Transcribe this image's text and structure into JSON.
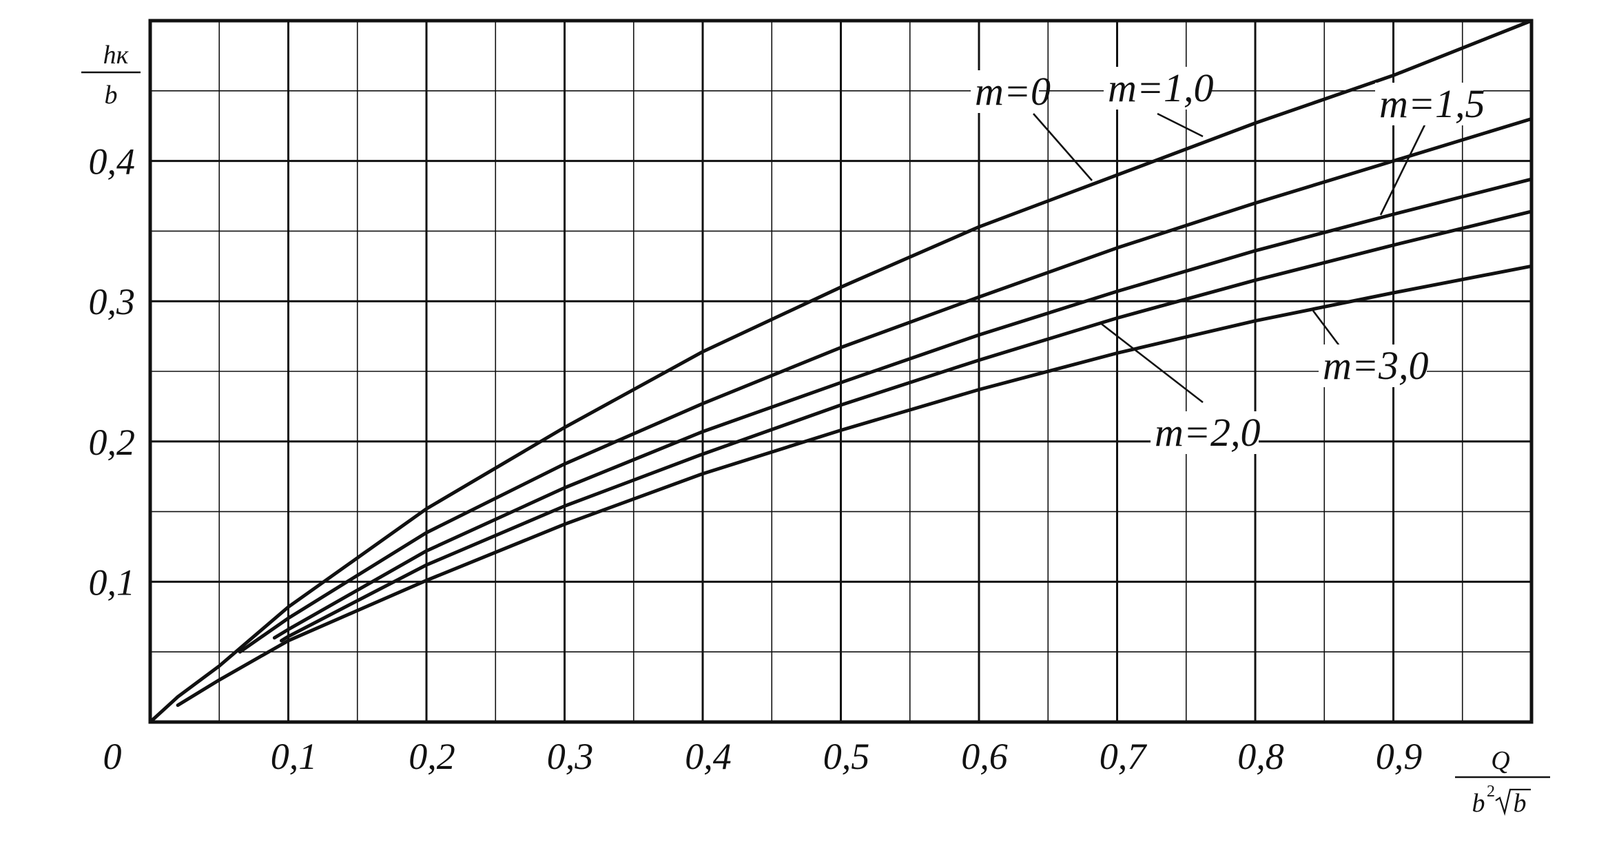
{
  "chart_data": {
    "type": "line",
    "title": "",
    "xlabel": "Q / b²√b",
    "ylabel": "hк / b",
    "xlim": [
      0,
      1.0
    ],
    "ylim": [
      0,
      0.5
    ],
    "grid": true,
    "legend": "inline labels with leader lines",
    "x_tick_labels": [
      "0,1",
      "0,2",
      "0,3",
      "0,4",
      "0,5",
      "0,6",
      "0,7",
      "0,8",
      "0,9"
    ],
    "y_tick_labels": [
      "0,1",
      "0,2",
      "0,3",
      "0,4"
    ],
    "origin_label": "0",
    "axis_labels": {
      "y_numerator": "hк",
      "y_denominator": "b",
      "x_numerator": "Q",
      "x_denominator_base": "b",
      "x_denominator_exp": "2",
      "x_denominator_root": "b"
    },
    "series": [
      {
        "name": "m=0",
        "x": [
          0,
          0.02,
          0.05,
          0.1,
          0.2,
          0.3,
          0.4,
          0.5,
          0.6,
          0.7,
          0.8,
          0.9,
          1.0
        ],
        "y": [
          0,
          0.018,
          0.04,
          0.082,
          0.152,
          0.21,
          0.264,
          0.31,
          0.353,
          0.39,
          0.427,
          0.461,
          0.5
        ]
      },
      {
        "name": "m=1,0",
        "x": [
          0.065,
          0.1,
          0.2,
          0.3,
          0.4,
          0.5,
          0.6,
          0.7,
          0.8,
          0.9,
          1.0
        ],
        "y": [
          0.05,
          0.074,
          0.135,
          0.184,
          0.227,
          0.267,
          0.303,
          0.338,
          0.37,
          0.4,
          0.43
        ]
      },
      {
        "name": "m=1,5",
        "x": [
          0.09,
          0.1,
          0.2,
          0.3,
          0.4,
          0.5,
          0.6,
          0.7,
          0.8,
          0.9,
          1.0
        ],
        "y": [
          0.06,
          0.066,
          0.122,
          0.167,
          0.207,
          0.242,
          0.276,
          0.307,
          0.336,
          0.362,
          0.387
        ]
      },
      {
        "name": "m=2,0",
        "x": [
          0.095,
          0.1,
          0.2,
          0.3,
          0.4,
          0.5,
          0.6,
          0.7,
          0.8,
          0.9,
          1.0
        ],
        "y": [
          0.058,
          0.061,
          0.112,
          0.154,
          0.191,
          0.226,
          0.258,
          0.288,
          0.315,
          0.34,
          0.364
        ]
      },
      {
        "name": "m=3,0",
        "x": [
          0.02,
          0.05,
          0.1,
          0.2,
          0.3,
          0.4,
          0.5,
          0.6,
          0.7,
          0.8,
          0.9,
          1.0
        ],
        "y": [
          0.012,
          0.03,
          0.058,
          0.101,
          0.141,
          0.177,
          0.208,
          0.237,
          0.263,
          0.286,
          0.306,
          0.325
        ]
      }
    ]
  }
}
